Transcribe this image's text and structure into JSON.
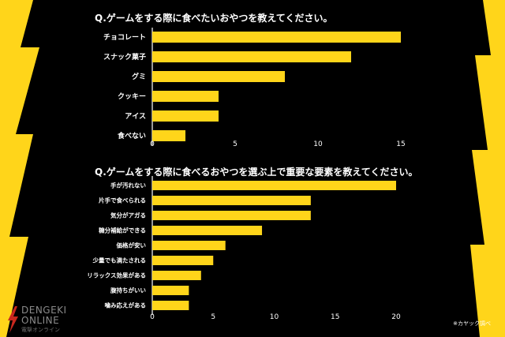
{
  "chart_data": [
    {
      "type": "bar",
      "orientation": "horizontal",
      "title": "Q.ゲームをする際に食べたいおやつを教えてください。",
      "categories": [
        "チョコレート",
        "スナック菓子",
        "グミ",
        "クッキー",
        "アイス",
        "食べない"
      ],
      "values": [
        15,
        12,
        8,
        4,
        4,
        2
      ],
      "xlim": [
        0,
        15
      ],
      "xticks": [
        0,
        5,
        10,
        15
      ],
      "bar_color": "#FFD51A",
      "grid": false
    },
    {
      "type": "bar",
      "orientation": "horizontal",
      "title": "Q.ゲームをする際に食べるおやつを選ぶ上で重要な要素を教えてください。",
      "categories": [
        "手が汚れない",
        "片手で食べられる",
        "気分がアガる",
        "糖分補給ができる",
        "価格が安い",
        "少量でも満たされる",
        "リラックス効果がある",
        "腹持ちがいい",
        "噛み応えがある"
      ],
      "values": [
        20,
        13,
        13,
        9,
        6,
        5,
        4,
        3,
        3
      ],
      "xlim": [
        0,
        20
      ],
      "xticks": [
        0,
        5,
        10,
        15,
        20
      ],
      "bar_color": "#FFD51A",
      "grid": false
    }
  ],
  "watermark": {
    "line1": "DENGEKI",
    "line2": "ONLINE",
    "sub": "電撃オンライン"
  },
  "note": "※カヤック調べ",
  "colors": {
    "background": "#000000",
    "accent": "#FFD51A",
    "panel": "#FFFFFF"
  }
}
